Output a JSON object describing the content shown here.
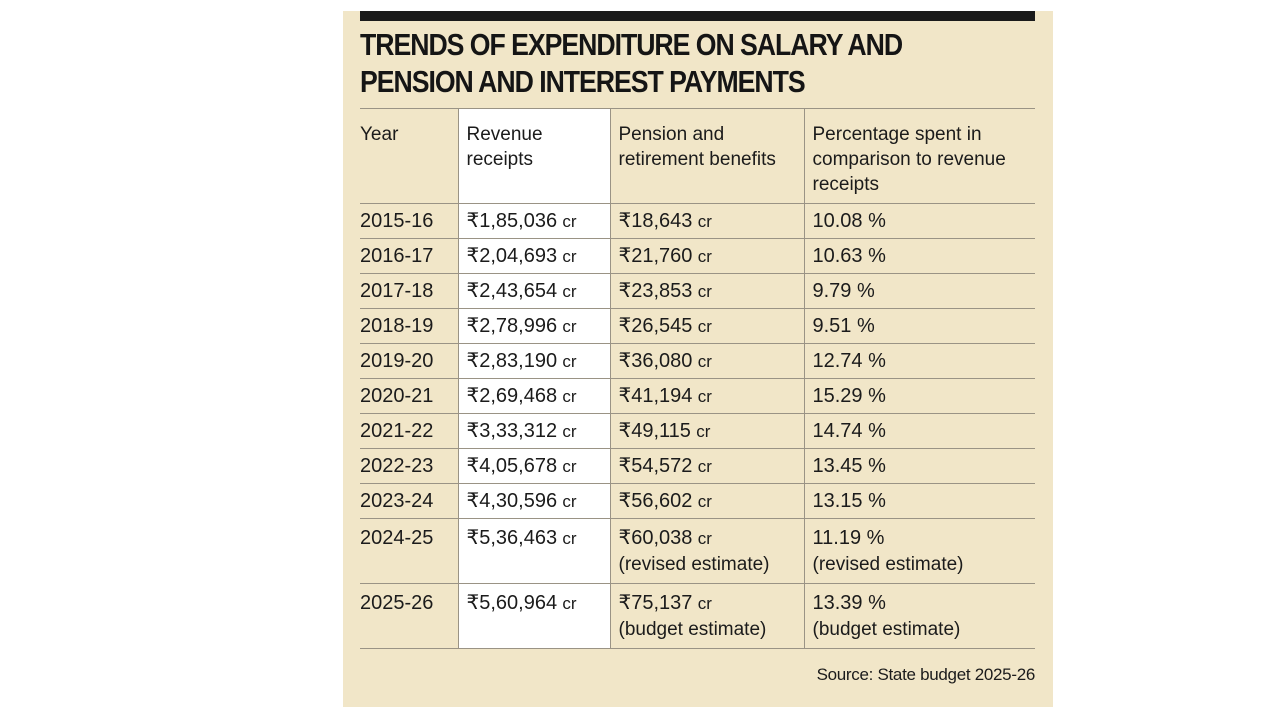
{
  "title_lines": [
    "TRENDS OF EXPENDITURE ON SALARY AND",
    "PENSION AND INTEREST PAYMENTS"
  ],
  "source": "Source: State budget 2025-26",
  "colors": {
    "panel": "#f1e6c8",
    "revenue_column": "#ffffff",
    "rule": "#9a9385",
    "bar": "#1a1a1a"
  },
  "chart_data": {
    "type": "table",
    "title": "TRENDS OF EXPENDITURE ON SALARY AND PENSION AND INTEREST PAYMENTS",
    "columns": [
      "Year",
      "Revenue receipts",
      "Pension and retirement benefits",
      "Percentage spent in comparison to revenue receipts"
    ],
    "rows": [
      {
        "year": "2015-16",
        "revenue": "₹1,85,036",
        "pension": "₹18,643",
        "pension_note": "",
        "percent": "10.08 %",
        "percent_note": ""
      },
      {
        "year": "2016-17",
        "revenue": "₹2,04,693",
        "pension": "₹21,760",
        "pension_note": "",
        "percent": "10.63 %",
        "percent_note": ""
      },
      {
        "year": "2017-18",
        "revenue": "₹2,43,654",
        "pension": "₹23,853",
        "pension_note": "",
        "percent": "9.79 %",
        "percent_note": ""
      },
      {
        "year": "2018-19",
        "revenue": "₹2,78,996",
        "pension": "₹26,545",
        "pension_note": "",
        "percent": "9.51 %",
        "percent_note": ""
      },
      {
        "year": "2019-20",
        "revenue": "₹2,83,190",
        "pension": "₹36,080",
        "pension_note": "",
        "percent": "12.74 %",
        "percent_note": ""
      },
      {
        "year": "2020-21",
        "revenue": "₹2,69,468",
        "pension": "₹41,194",
        "pension_note": "",
        "percent": "15.29 %",
        "percent_note": ""
      },
      {
        "year": "2021-22",
        "revenue": "₹3,33,312",
        "pension": "₹49,115",
        "pension_note": "",
        "percent": "14.74 %",
        "percent_note": ""
      },
      {
        "year": "2022-23",
        "revenue": "₹4,05,678",
        "pension": "₹54,572",
        "pension_note": "",
        "percent": "13.45 %",
        "percent_note": ""
      },
      {
        "year": "2023-24",
        "revenue": "₹4,30,596",
        "pension": "₹56,602",
        "pension_note": "",
        "percent": "13.15 %",
        "percent_note": ""
      },
      {
        "year": "2024-25",
        "revenue": "₹5,36,463",
        "pension": "₹60,038",
        "pension_note": "(revised estimate)",
        "percent": "11.19 %",
        "percent_note": "(revised estimate)"
      },
      {
        "year": "2025-26",
        "revenue": "₹5,60,964",
        "pension": "₹75,137",
        "pension_note": "(budget estimate)",
        "percent": "13.39 %",
        "percent_note": "(budget estimate)"
      }
    ],
    "unit": "cr"
  }
}
